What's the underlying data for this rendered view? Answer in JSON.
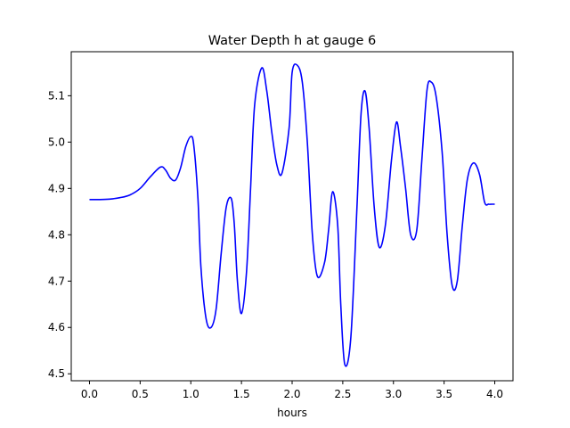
{
  "chart_data": {
    "type": "line",
    "title": "Water Depth h at gauge 6",
    "xlabel": "hours",
    "ylabel": "",
    "xlim": [
      -0.18,
      4.18
    ],
    "ylim": [
      4.485,
      5.195
    ],
    "xticks": [
      0.0,
      0.5,
      1.0,
      1.5,
      2.0,
      2.5,
      3.0,
      3.5,
      4.0
    ],
    "xtick_labels": [
      "0.0",
      "0.5",
      "1.0",
      "1.5",
      "2.0",
      "2.5",
      "3.0",
      "3.5",
      "4.0"
    ],
    "yticks": [
      4.5,
      4.6,
      4.7,
      4.8,
      4.9,
      5.0,
      5.1
    ],
    "ytick_labels": [
      "4.5",
      "4.6",
      "4.7",
      "4.8",
      "4.9",
      "5.0",
      "5.1"
    ],
    "grid": false,
    "series": [
      {
        "color": "#0000ff",
        "x": [
          0.0,
          0.1,
          0.2,
          0.3,
          0.4,
          0.5,
          0.6,
          0.7,
          0.75,
          0.8,
          0.85,
          0.9,
          0.95,
          1.0,
          1.03,
          1.07,
          1.1,
          1.15,
          1.2,
          1.25,
          1.3,
          1.35,
          1.4,
          1.43,
          1.46,
          1.5,
          1.55,
          1.59,
          1.63,
          1.7,
          1.75,
          1.8,
          1.85,
          1.9,
          1.97,
          2.0,
          2.05,
          2.1,
          2.15,
          2.2,
          2.25,
          2.32,
          2.36,
          2.4,
          2.45,
          2.48,
          2.52,
          2.58,
          2.64,
          2.68,
          2.72,
          2.76,
          2.81,
          2.86,
          2.92,
          2.98,
          3.03,
          3.07,
          3.12,
          3.17,
          3.23,
          3.28,
          3.33,
          3.37,
          3.42,
          3.48,
          3.53,
          3.58,
          3.63,
          3.68,
          3.73,
          3.79,
          3.85,
          3.9,
          3.94,
          3.97,
          4.0
        ],
        "y": [
          4.876,
          4.876,
          4.877,
          4.88,
          4.886,
          4.9,
          4.925,
          4.946,
          4.94,
          4.922,
          4.918,
          4.945,
          4.99,
          5.012,
          4.992,
          4.88,
          4.73,
          4.62,
          4.6,
          4.64,
          4.76,
          4.86,
          4.878,
          4.82,
          4.7,
          4.63,
          4.72,
          4.9,
          5.08,
          5.16,
          5.11,
          5.02,
          4.95,
          4.933,
          5.03,
          5.15,
          5.166,
          5.13,
          5.0,
          4.8,
          4.71,
          4.74,
          4.81,
          4.893,
          4.82,
          4.65,
          4.52,
          4.58,
          4.86,
          5.06,
          5.11,
          5.03,
          4.86,
          4.773,
          4.82,
          4.96,
          5.043,
          4.99,
          4.9,
          4.8,
          4.81,
          4.96,
          5.11,
          5.13,
          5.1,
          4.98,
          4.8,
          4.69,
          4.7,
          4.82,
          4.92,
          4.955,
          4.93,
          4.87,
          4.866,
          4.866,
          4.866
        ]
      }
    ]
  }
}
